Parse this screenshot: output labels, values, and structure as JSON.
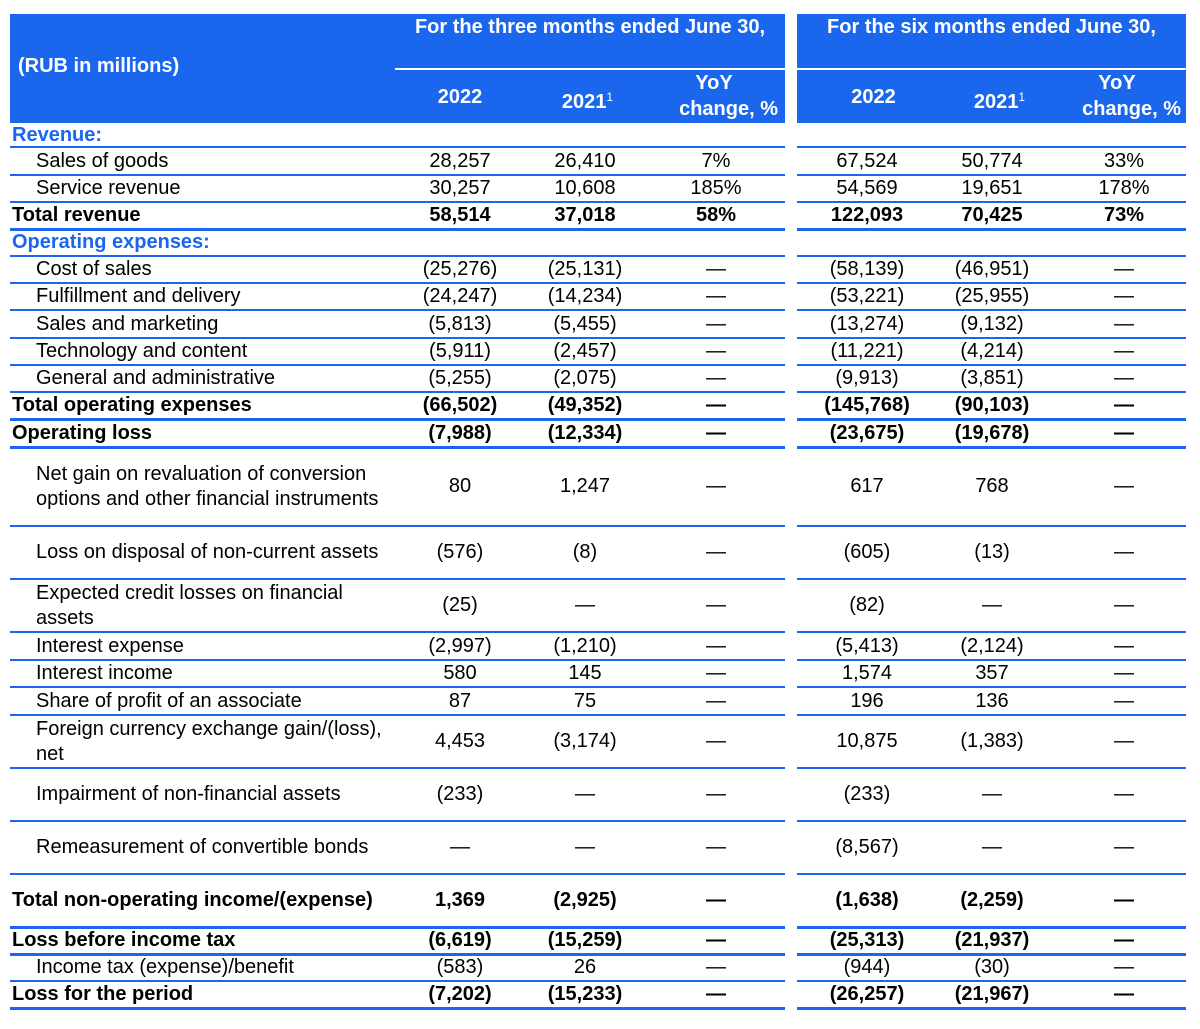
{
  "header": {
    "units_label": "(RUB in millions)",
    "three_months_label": "For the three months ended June 30,",
    "six_months_label": "For the six months ended June 30,",
    "col_2022": "2022",
    "col_2021": "2021",
    "footnote_mark": "1",
    "yoy_label_line1": "YoY",
    "yoy_label_line2": "change, %"
  },
  "rows": [
    {
      "label": "Revenue:",
      "type": "section",
      "values": [
        "",
        "",
        "",
        "",
        "",
        ""
      ]
    },
    {
      "label": "Sales of goods",
      "type": "indent",
      "values": [
        "28,257",
        "26,410",
        "7%",
        "67,524",
        "50,774",
        "33%"
      ]
    },
    {
      "label": "Service revenue",
      "type": "indent",
      "values": [
        "30,257",
        "10,608",
        "185%",
        "54,569",
        "19,651",
        "178%"
      ]
    },
    {
      "label": "Total revenue",
      "type": "total",
      "values": [
        "58,514",
        "37,018",
        "58%",
        "122,093",
        "70,425",
        "73%"
      ]
    },
    {
      "label": "Operating expenses:",
      "type": "section",
      "values": [
        "",
        "",
        "",
        "",
        "",
        ""
      ]
    },
    {
      "label": "Cost of sales",
      "type": "indent",
      "values": [
        "(25,276)",
        "(25,131)",
        "—",
        "(58,139)",
        "(46,951)",
        "—"
      ]
    },
    {
      "label": "Fulfillment and delivery",
      "type": "indent",
      "values": [
        "(24,247)",
        "(14,234)",
        "—",
        "(53,221)",
        "(25,955)",
        "—"
      ]
    },
    {
      "label": "Sales and marketing",
      "type": "indent",
      "values": [
        "(5,813)",
        "(5,455)",
        "—",
        "(13,274)",
        "(9,132)",
        "—"
      ]
    },
    {
      "label": "Technology and content",
      "type": "indent",
      "values": [
        "(5,911)",
        "(2,457)",
        "—",
        "(11,221)",
        "(4,214)",
        "—"
      ]
    },
    {
      "label": "General and administrative",
      "type": "indent",
      "values": [
        "(5,255)",
        "(2,075)",
        "—",
        "(9,913)",
        "(3,851)",
        "—"
      ]
    },
    {
      "label": "Total operating expenses",
      "type": "total",
      "values": [
        "(66,502)",
        "(49,352)",
        "—",
        "(145,768)",
        "(90,103)",
        "—"
      ]
    },
    {
      "label": "Operating loss",
      "type": "total",
      "values": [
        "(7,988)",
        "(12,334)",
        "—",
        "(23,675)",
        "(19,678)",
        "—"
      ]
    },
    {
      "label": "Net gain on revaluation of conversion options and other financial instruments",
      "type": "indent",
      "values": [
        "80",
        "1,247",
        "—",
        "617",
        "768",
        "—"
      ]
    },
    {
      "label": "Loss on disposal of non-current assets",
      "type": "indent",
      "values": [
        "(576)",
        "(8)",
        "—",
        "(605)",
        "(13)",
        "—"
      ]
    },
    {
      "label": "Expected credit losses on financial assets",
      "type": "indent",
      "values": [
        "(25)",
        "—",
        "—",
        "(82)",
        "—",
        "—"
      ]
    },
    {
      "label": "Interest expense",
      "type": "indent",
      "values": [
        "(2,997)",
        "(1,210)",
        "—",
        "(5,413)",
        "(2,124)",
        "—"
      ]
    },
    {
      "label": "Interest income",
      "type": "indent",
      "values": [
        "580",
        "145",
        "—",
        "1,574",
        "357",
        "—"
      ]
    },
    {
      "label": "Share of profit of an associate",
      "type": "indent",
      "values": [
        "87",
        "75",
        "—",
        "196",
        "136",
        "—"
      ]
    },
    {
      "label": "Foreign currency exchange gain/(loss), net",
      "type": "indent",
      "values": [
        "4,453",
        "(3,174)",
        "—",
        "10,875",
        "(1,383)",
        "—"
      ]
    },
    {
      "label": "Impairment of non-financial assets",
      "type": "indent",
      "values": [
        "(233)",
        "—",
        "—",
        "(233)",
        "—",
        "—"
      ]
    },
    {
      "label": "Remeasurement of convertible bonds",
      "type": "indent",
      "values": [
        "—",
        "—",
        "—",
        "(8,567)",
        "—",
        "—"
      ]
    },
    {
      "label": "Total non-operating income/(expense)",
      "type": "total",
      "values": [
        "1,369",
        "(2,925)",
        "—",
        "(1,638)",
        "(2,259)",
        "—"
      ]
    },
    {
      "label": "Loss before income tax",
      "type": "total",
      "values": [
        "(6,619)",
        "(15,259)",
        "—",
        "(25,313)",
        "(21,937)",
        "—"
      ]
    },
    {
      "label": "Income tax (expense)/benefit",
      "type": "indent",
      "values": [
        "(583)",
        "26",
        "—",
        "(944)",
        "(30)",
        "—"
      ]
    },
    {
      "label": "Loss for the period",
      "type": "total",
      "values": [
        "(7,202)",
        "(15,233)",
        "—",
        "(26,257)",
        "(21,967)",
        "—"
      ]
    }
  ]
}
